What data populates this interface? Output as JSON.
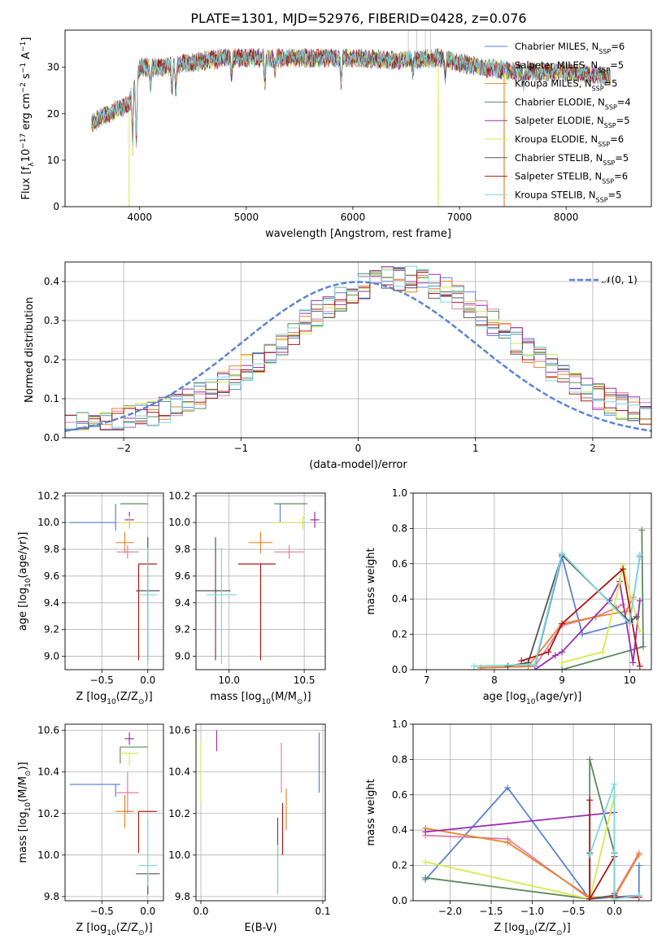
{
  "figure_title": "PLATE=1301, MJD=52976, FIBERID=0428, z=0.076",
  "models": [
    {
      "name": "Chabrier MILES, N",
      "sub": "SSP",
      "eq": "=6",
      "color": "#5b84d6"
    },
    {
      "name": "Salpeter MILES, N",
      "sub": "SSP",
      "eq": "=5",
      "color": "#e07fa3"
    },
    {
      "name": "Kroupa MILES, N",
      "sub": "SSP",
      "eq": "=5",
      "color": "#e8852a"
    },
    {
      "name": "Chabrier ELODIE, N",
      "sub": "SSP",
      "eq": "=4",
      "color": "#5e8a5e"
    },
    {
      "name": "Salpeter ELODIE, N",
      "sub": "SSP",
      "eq": "=5",
      "color": "#9b2fb0"
    },
    {
      "name": "Kroupa ELODIE, N",
      "sub": "SSP",
      "eq": "=6",
      "color": "#d6ea4f"
    },
    {
      "name": "Chabrier STELIB, N",
      "sub": "SSP",
      "eq": "=5",
      "color": "#555555"
    },
    {
      "name": "Salpeter STELIB, N",
      "sub": "SSP",
      "eq": "=6",
      "color": "#b01717"
    },
    {
      "name": "Kroupa STELIB, N",
      "sub": "SSP",
      "eq": "=5",
      "color": "#7fd8de"
    }
  ],
  "chart_data": [
    {
      "id": "spectrum",
      "type": "line",
      "xlabel": "wavelength [Angstrom, rest frame]",
      "ylabel": "Flux [f",
      "ylabel_sub": "λ",
      "ylabel_rest": "10",
      "ylabel_sup": "−17",
      "ylabel_tail": " erg cm",
      "ylabel_sup2": "−2",
      "ylabel_s": " s",
      "ylabel_sup3": "−1",
      "ylabel_A": " A",
      "ylabel_sup4": "−1",
      "ylabel_end": "]",
      "xlim": [
        3300,
        8800
      ],
      "ylim": [
        0,
        38
      ],
      "xticks": [
        4000,
        5000,
        6000,
        7000,
        8000
      ],
      "yticks": [
        0,
        10,
        20,
        30
      ],
      "x_range": [
        3550,
        8420
      ],
      "continuum": [
        [
          3550,
          18
        ],
        [
          3700,
          20
        ],
        [
          3900,
          22
        ],
        [
          4000,
          30
        ],
        [
          4200,
          30
        ],
        [
          4500,
          31
        ],
        [
          4800,
          32
        ],
        [
          5200,
          32
        ],
        [
          5600,
          32
        ],
        [
          6000,
          32
        ],
        [
          6400,
          31.5
        ],
        [
          6800,
          32
        ],
        [
          7200,
          30
        ],
        [
          7600,
          29
        ],
        [
          8000,
          29
        ],
        [
          8420,
          28
        ]
      ],
      "absorption_lines": [
        [
          3934,
          12
        ],
        [
          3969,
          14
        ],
        [
          4102,
          4
        ],
        [
          4304,
          6
        ],
        [
          4340,
          6
        ],
        [
          4861,
          4
        ],
        [
          5175,
          6
        ],
        [
          5270,
          3
        ],
        [
          5890,
          5
        ],
        [
          6563,
          3
        ],
        [
          6867,
          4
        ],
        [
          7600,
          3
        ]
      ],
      "dropouts": [
        {
          "x": 3900,
          "model": 5
        },
        {
          "x": 6800,
          "model": 5
        },
        {
          "x": 7420,
          "model": 2
        }
      ]
    },
    {
      "id": "residuals",
      "type": "histogram",
      "xlabel": "(data-model)/error",
      "ylabel": "Normed distribution",
      "xlim": [
        -2.5,
        2.5
      ],
      "ylim": [
        0,
        0.45
      ],
      "xticks": [
        -2,
        -1,
        0,
        1,
        2
      ],
      "yticks": [
        0.0,
        0.1,
        0.2,
        0.3,
        0.4
      ],
      "gaussian_label": "𝒩(0, 1)",
      "gaussian_color": "#5b84d6",
      "bin_width": 0.1,
      "peak_shift": 0.35,
      "sigma": 0.95
    },
    {
      "id": "age_vs_Z",
      "type": "errorbar",
      "xlabel": "Z [log",
      "xlabel_sub": "10",
      "xlabel_rest": "(Z/Z",
      "xlabel_sub2": "⊙",
      "xlabel_end": ")]",
      "ylabel": "age  [log",
      "ylabel_sub": "10",
      "ylabel_rest": "(age/yr)]",
      "xlim": [
        -0.9,
        0.17
      ],
      "ylim": [
        8.9,
        10.22
      ],
      "xticks": [
        -0.5,
        0.0
      ],
      "yticks": [
        9.0,
        9.2,
        9.4,
        9.6,
        9.8,
        10.0,
        10.2
      ],
      "points": [
        {
          "model": 0,
          "x": -0.35,
          "xerr": [
            0.5,
            0.0
          ],
          "y": 10.0,
          "yerr": [
            0.06,
            0.14
          ]
        },
        {
          "model": 1,
          "x": -0.22,
          "xerr": [
            0.12,
            0.12
          ],
          "y": 9.78,
          "yerr": [
            0.05,
            0.05
          ]
        },
        {
          "model": 2,
          "x": -0.25,
          "xerr": [
            0.1,
            0.1
          ],
          "y": 9.85,
          "yerr": [
            0.08,
            0.08
          ]
        },
        {
          "model": 3,
          "x": -0.3,
          "xerr": [
            0.0,
            0.3
          ],
          "y": 10.14,
          "yerr": [
            0.0,
            0.0
          ]
        },
        {
          "model": 4,
          "x": -0.2,
          "xerr": [
            0.05,
            0.05
          ],
          "y": 10.02,
          "yerr": [
            0.06,
            0.06
          ]
        },
        {
          "model": 5,
          "x": -0.2,
          "xerr": [
            0.1,
            0.1
          ],
          "y": 10.0,
          "yerr": [
            0.05,
            0.05
          ]
        },
        {
          "model": 6,
          "x": 0.0,
          "xerr": [
            0.13,
            0.13
          ],
          "y": 9.49,
          "yerr": [
            0.52,
            0.4
          ]
        },
        {
          "model": 7,
          "x": -0.1,
          "xerr": [
            0.0,
            0.2
          ],
          "y": 9.69,
          "yerr": [
            0.72,
            0.0
          ]
        },
        {
          "model": 8,
          "x": 0.0,
          "xerr": [
            0.1,
            0.1
          ],
          "y": 9.46,
          "yerr": [
            0.52,
            0.35
          ]
        }
      ]
    },
    {
      "id": "age_vs_mass",
      "type": "errorbar",
      "xlabel": "mass [log",
      "xlabel_sub": "10",
      "xlabel_rest": "(M/M",
      "xlabel_sub2": "⊙",
      "xlabel_end": ")]",
      "ylabel": "",
      "xlim": [
        9.78,
        10.64
      ],
      "ylim": [
        8.9,
        10.22
      ],
      "xticks": [
        10.0,
        10.5
      ],
      "yticks": [
        9.0,
        9.2,
        9.4,
        9.6,
        9.8,
        10.0,
        10.2
      ],
      "points": [
        {
          "model": 0,
          "x": 10.34,
          "xerr": [
            0.0,
            0.0
          ],
          "y": 10.0,
          "yerr": [
            0.0,
            0.14
          ]
        },
        {
          "model": 1,
          "x": 10.4,
          "xerr": [
            0.1,
            0.1
          ],
          "y": 9.78,
          "yerr": [
            0.05,
            0.05
          ]
        },
        {
          "model": 2,
          "x": 10.21,
          "xerr": [
            0.08,
            0.08
          ],
          "y": 9.85,
          "yerr": [
            0.08,
            0.08
          ]
        },
        {
          "model": 3,
          "x": 10.52,
          "xerr": [
            0.22,
            0.0
          ],
          "y": 10.14,
          "yerr": [
            0.0,
            0.0
          ]
        },
        {
          "model": 4,
          "x": 10.57,
          "xerr": [
            0.03,
            0.03
          ],
          "y": 10.02,
          "yerr": [
            0.06,
            0.06
          ]
        },
        {
          "model": 5,
          "x": 10.49,
          "xerr": [
            0.2,
            0.0
          ],
          "y": 10.0,
          "yerr": [
            0.05,
            0.05
          ]
        },
        {
          "model": 6,
          "x": 9.91,
          "xerr": [
            0.13,
            0.1
          ],
          "y": 9.49,
          "yerr": [
            0.52,
            0.4
          ]
        },
        {
          "model": 7,
          "x": 10.21,
          "xerr": [
            0.15,
            0.1
          ],
          "y": 9.69,
          "yerr": [
            0.72,
            0.0
          ]
        },
        {
          "model": 8,
          "x": 9.95,
          "xerr": [
            0.1,
            0.1
          ],
          "y": 9.46,
          "yerr": [
            0.52,
            0.35
          ]
        }
      ]
    },
    {
      "id": "weight_vs_age",
      "type": "line",
      "xlabel": "age  [log",
      "xlabel_sub": "10",
      "xlabel_rest": "(age/yr)]",
      "ylabel": "mass weight",
      "xlim": [
        6.8,
        10.32
      ],
      "ylim": [
        0,
        1
      ],
      "xticks": [
        7,
        8,
        9,
        10
      ],
      "yticks": [
        0.0,
        0.2,
        0.4,
        0.6,
        0.8,
        1.0
      ],
      "series": [
        {
          "model": 0,
          "x": [
            7.8,
            8.6,
            9.0,
            9.3,
            10.0,
            10.15
          ],
          "y": [
            0.01,
            0.02,
            0.64,
            0.2,
            0.27,
            0.64
          ]
        },
        {
          "model": 1,
          "x": [
            7.8,
            8.6,
            9.0,
            9.5,
            9.8,
            9.9
          ],
          "y": [
            0.01,
            0.02,
            0.25,
            0.3,
            0.35,
            0.37
          ]
        },
        {
          "model": 2,
          "x": [
            7.8,
            8.5,
            9.0,
            9.5,
            9.95,
            10.05
          ],
          "y": [
            0.01,
            0.02,
            0.26,
            0.3,
            0.33,
            0.41
          ]
        },
        {
          "model": 3,
          "x": [
            8.6,
            9.0,
            10.2,
            10.18
          ],
          "y": [
            0.0,
            0.0,
            0.13,
            0.79
          ]
        },
        {
          "model": 4,
          "x": [
            8.6,
            8.9,
            9.0,
            9.7,
            9.85,
            10.05,
            10.15
          ],
          "y": [
            0.0,
            0.08,
            0.1,
            0.39,
            0.5,
            0.04,
            0.39
          ]
        },
        {
          "model": 5,
          "x": [
            9.0,
            9.6,
            9.85,
            9.9,
            10.15
          ],
          "y": [
            0.04,
            0.1,
            0.49,
            0.59,
            0.22
          ]
        },
        {
          "model": 6,
          "x": [
            8.2,
            8.5,
            9.0,
            10.0,
            10.1
          ],
          "y": [
            0.02,
            0.04,
            0.65,
            0.27,
            0.3
          ]
        },
        {
          "model": 7,
          "x": [
            8.4,
            8.8,
            9.0,
            9.9,
            10.15
          ],
          "y": [
            0.05,
            0.1,
            0.26,
            0.57,
            0.02
          ]
        },
        {
          "model": 8,
          "x": [
            7.7,
            8.6,
            9.0,
            10.0,
            10.15
          ],
          "y": [
            0.02,
            0.03,
            0.66,
            0.26,
            0.65
          ]
        }
      ]
    },
    {
      "id": "mass_vs_Z",
      "type": "errorbar",
      "xlabel": "Z [log",
      "xlabel_sub": "10",
      "xlabel_rest": "(Z/Z",
      "xlabel_sub2": "⊙",
      "xlabel_end": ")]",
      "ylabel": "mass [log",
      "ylabel_sub": "10",
      "ylabel_rest": "(M/M",
      "ylabel_sub2": "⊙",
      "ylabel_end": ")]",
      "xlim": [
        -0.9,
        0.17
      ],
      "ylim": [
        9.78,
        10.63
      ],
      "xticks": [
        -0.5,
        0.0
      ],
      "yticks": [
        9.8,
        10.0,
        10.2,
        10.4,
        10.6
      ],
      "points": [
        {
          "model": 0,
          "x": -0.35,
          "xerr": [
            0.5,
            0.05
          ],
          "y": 10.34,
          "yerr": [
            0.06,
            0.0
          ]
        },
        {
          "model": 1,
          "x": -0.22,
          "xerr": [
            0.12,
            0.12
          ],
          "y": 10.3,
          "yerr": [
            0.1,
            0.1
          ]
        },
        {
          "model": 2,
          "x": -0.25,
          "xerr": [
            0.1,
            0.1
          ],
          "y": 10.21,
          "yerr": [
            0.08,
            0.08
          ]
        },
        {
          "model": 3,
          "x": -0.3,
          "xerr": [
            0.0,
            0.3
          ],
          "y": 10.52,
          "yerr": [
            0.08,
            0.0
          ]
        },
        {
          "model": 4,
          "x": -0.2,
          "xerr": [
            0.05,
            0.05
          ],
          "y": 10.56,
          "yerr": [
            0.03,
            0.03
          ]
        },
        {
          "model": 5,
          "x": -0.2,
          "xerr": [
            0.1,
            0.1
          ],
          "y": 10.49,
          "yerr": [
            0.06,
            0.0
          ]
        },
        {
          "model": 6,
          "x": 0.0,
          "xerr": [
            0.13,
            0.13
          ],
          "y": 9.91,
          "yerr": [
            0.1,
            0.0
          ]
        },
        {
          "model": 7,
          "x": -0.1,
          "xerr": [
            0.0,
            0.2
          ],
          "y": 10.21,
          "yerr": [
            0.2,
            0.0
          ]
        },
        {
          "model": 8,
          "x": 0.0,
          "xerr": [
            0.1,
            0.1
          ],
          "y": 9.95,
          "yerr": [
            0.1,
            0.22
          ]
        }
      ]
    },
    {
      "id": "mass_vs_ebv",
      "type": "errorbar",
      "xlabel": "E(B-V)",
      "ylabel": "",
      "xlim": [
        -0.004,
        0.102
      ],
      "ylim": [
        9.78,
        10.63
      ],
      "xticks": [
        0.0,
        0.1
      ],
      "yticks": [
        9.8,
        10.0,
        10.2,
        10.4,
        10.6
      ],
      "points": [
        {
          "model": 0,
          "x": 0.097,
          "xerr": [
            0,
            0
          ],
          "y": 10.4,
          "yerr": [
            0.1,
            0.19
          ]
        },
        {
          "model": 1,
          "x": 0.066,
          "xerr": [
            0,
            0
          ],
          "y": 10.42,
          "yerr": [
            0.12,
            0.12
          ]
        },
        {
          "model": 2,
          "x": 0.07,
          "xerr": [
            0,
            0
          ],
          "y": 10.2,
          "yerr": [
            0.08,
            0.12
          ]
        },
        {
          "model": 3,
          "x": 0.066,
          "xerr": [
            0,
            0
          ],
          "y": 9.98,
          "yerr": [
            0.0,
            0.0
          ]
        },
        {
          "model": 4,
          "x": 0.013,
          "xerr": [
            0,
            0
          ],
          "y": 10.55,
          "yerr": [
            0.05,
            0.05
          ]
        },
        {
          "model": 5,
          "x": 0.0,
          "xerr": [
            0,
            0
          ],
          "y": 10.4,
          "yerr": [
            0.15,
            0.15
          ]
        },
        {
          "model": 6,
          "x": 0.063,
          "xerr": [
            0,
            0
          ],
          "y": 9.96,
          "yerr": [
            0.14,
            0.22
          ]
        },
        {
          "model": 7,
          "x": 0.067,
          "xerr": [
            0,
            0
          ],
          "y": 10.1,
          "yerr": [
            0.1,
            0.15
          ]
        },
        {
          "model": 8,
          "x": 0.063,
          "xerr": [
            0,
            0
          ],
          "y": 9.95,
          "yerr": [
            0.14,
            0.1
          ]
        }
      ]
    },
    {
      "id": "weight_vs_Z",
      "type": "line",
      "xlabel": "Z [log",
      "xlabel_sub": "10",
      "xlabel_rest": "(Z/Z",
      "xlabel_sub2": "⊙",
      "xlabel_end": ")]",
      "ylabel": "mass weight",
      "xlim": [
        -2.45,
        0.45
      ],
      "ylim": [
        0,
        1
      ],
      "xticks": [
        -2.0,
        -1.5,
        -1.0,
        -0.5,
        0.0
      ],
      "yticks": [
        0.0,
        0.2,
        0.4,
        0.6,
        0.8,
        1.0
      ],
      "series": [
        {
          "model": 0,
          "x": [
            -2.3,
            -1.3,
            -0.3,
            0.3,
            0.3
          ],
          "y": [
            0.12,
            0.64,
            0.01,
            0.03,
            0.2
          ]
        },
        {
          "model": 1,
          "x": [
            -2.3,
            -1.3,
            -0.3,
            0.0,
            0.3
          ],
          "y": [
            0.37,
            0.35,
            0.01,
            0.03,
            0.27
          ]
        },
        {
          "model": 2,
          "x": [
            -2.3,
            -1.3,
            -0.3,
            0.0,
            0.3
          ],
          "y": [
            0.41,
            0.33,
            0.02,
            0.02,
            0.26
          ]
        },
        {
          "model": 3,
          "x": [
            -2.3,
            -0.3,
            -0.3,
            0.0,
            0.0
          ],
          "y": [
            0.13,
            0.01,
            0.8,
            0.27,
            0.02
          ]
        },
        {
          "model": 4,
          "x": [
            -2.3,
            0.0,
            0.0
          ],
          "y": [
            0.39,
            0.5,
            0.04
          ]
        },
        {
          "model": 5,
          "x": [
            -2.3,
            -0.3,
            0.0,
            0.0
          ],
          "y": [
            0.22,
            0.01,
            0.59,
            0.05
          ]
        },
        {
          "model": 6,
          "x": [
            -0.3,
            -0.3,
            0.0
          ],
          "y": [
            0.27,
            0.01,
            0.03
          ]
        },
        {
          "model": 7,
          "x": [
            -0.3,
            -0.3,
            0.0,
            0.0,
            0.3
          ],
          "y": [
            0.57,
            0.01,
            0.25,
            0.02,
            0.02
          ]
        },
        {
          "model": 8,
          "x": [
            -0.3,
            0.0,
            0.0,
            0.3
          ],
          "y": [
            0.26,
            0.66,
            0.01,
            0.03
          ]
        }
      ]
    }
  ]
}
